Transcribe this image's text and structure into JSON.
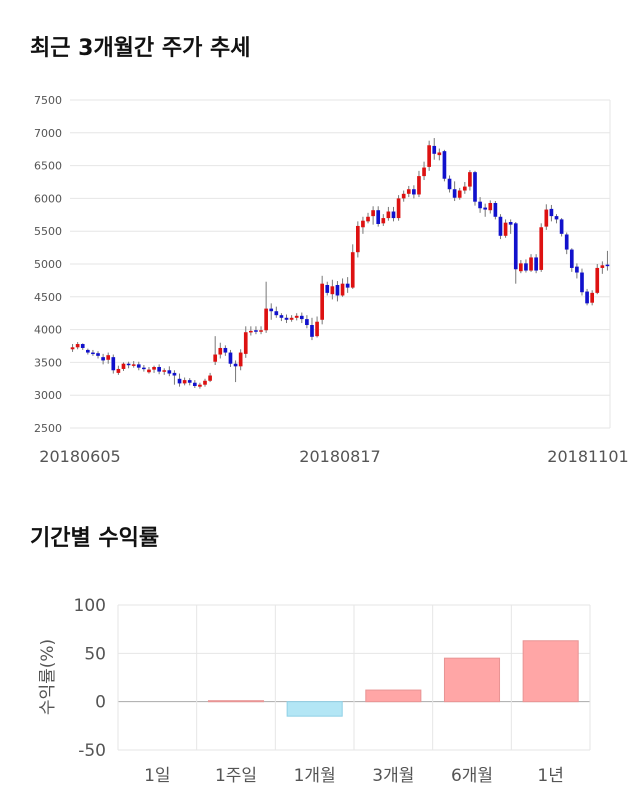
{
  "section1": {
    "title": "최근 3개월간 주가 추세"
  },
  "section2": {
    "title": "기간별 수익률"
  },
  "chart_data": [
    {
      "type": "candlestick",
      "title": "최근 3개월간 주가 추세",
      "ylim": [
        2500,
        7500
      ],
      "y_ticks": [
        "2500",
        "3000",
        "3500",
        "4000",
        "4500",
        "5000",
        "5500",
        "6000",
        "6500",
        "7000",
        "7500"
      ],
      "x_ticks": [
        "20180605",
        "20180817",
        "20181101"
      ],
      "colors": {
        "up": "#dd1111",
        "down": "#1111cc"
      },
      "grid": true,
      "close": [
        3730,
        3780,
        3720,
        3650,
        3640,
        3600,
        3530,
        3610,
        3380,
        3400,
        3480,
        3470,
        3470,
        3420,
        3400,
        3390,
        3430,
        3360,
        3380,
        3330,
        3300,
        3180,
        3230,
        3190,
        3140,
        3160,
        3220,
        3300,
        3620,
        3720,
        3650,
        3480,
        3440,
        3650,
        3960,
        3980,
        3970,
        3990,
        4320,
        4280,
        4220,
        4180,
        4150,
        4180,
        4210,
        4160,
        4070,
        3890,
        4120,
        4700,
        4560,
        4660,
        4520,
        4700,
        4640,
        5180,
        5580,
        5660,
        5720,
        5820,
        5610,
        5700,
        5800,
        5700,
        6000,
        6070,
        6140,
        6060,
        6340,
        6470,
        6810,
        6680,
        6700,
        6300,
        6140,
        6010,
        6120,
        6180,
        6400,
        5950,
        5850,
        5830,
        5930,
        5720,
        5430,
        5630,
        5600,
        4920,
        5010,
        4900,
        5100,
        4900,
        5560,
        5830,
        5730,
        5680,
        5460,
        5220,
        4940,
        4870,
        4570,
        4400,
        4560,
        4940,
        4980,
        4970
      ],
      "open": [
        3700,
        3730,
        3780,
        3690,
        3650,
        3640,
        3580,
        3540,
        3580,
        3340,
        3400,
        3480,
        3470,
        3470,
        3420,
        3350,
        3390,
        3430,
        3360,
        3380,
        3340,
        3250,
        3180,
        3230,
        3190,
        3130,
        3160,
        3220,
        3510,
        3620,
        3720,
        3650,
        3480,
        3440,
        3630,
        3960,
        3990,
        3970,
        3990,
        4320,
        4280,
        4220,
        4180,
        4150,
        4180,
        4210,
        4160,
        4070,
        3900,
        4150,
        4680,
        4540,
        4680,
        4520,
        4700,
        4640,
        5180,
        5560,
        5650,
        5730,
        5820,
        5620,
        5700,
        5800,
        5700,
        6000,
        6070,
        6140,
        6060,
        6340,
        6480,
        6800,
        6660,
        6720,
        6300,
        6140,
        6010,
        6120,
        6180,
        6400,
        5950,
        5860,
        5820,
        5930,
        5720,
        5430,
        5640,
        5620,
        4890,
        5010,
        4900,
        5100,
        4910,
        5570,
        5840,
        5730,
        5680,
        5450,
        5220,
        4960,
        4870,
        4580,
        4410,
        4560,
        4940,
        4990
      ],
      "high": [
        3780,
        3810,
        3790,
        3710,
        3690,
        3670,
        3630,
        3650,
        3620,
        3450,
        3500,
        3510,
        3520,
        3510,
        3460,
        3430,
        3450,
        3470,
        3410,
        3440,
        3380,
        3330,
        3270,
        3260,
        3230,
        3190,
        3250,
        3340,
        3900,
        3800,
        3760,
        3690,
        3530,
        3700,
        4050,
        4050,
        4050,
        4050,
        4730,
        4400,
        4350,
        4250,
        4230,
        4220,
        4250,
        4260,
        4220,
        4180,
        4200,
        4820,
        4730,
        4760,
        4740,
        4780,
        4800,
        5300,
        5650,
        5720,
        5780,
        5880,
        5880,
        5760,
        5870,
        5870,
        6050,
        6120,
        6190,
        6200,
        6420,
        6560,
        6880,
        6920,
        6760,
        6740,
        6350,
        6260,
        6160,
        6250,
        6430,
        6420,
        6020,
        5920,
        5970,
        5960,
        5760,
        5680,
        5680,
        5640,
        5060,
        5070,
        5150,
        5150,
        5620,
        5910,
        5900,
        5760,
        5700,
        5480,
        5240,
        5010,
        4930,
        4620,
        4600,
        5000,
        5040,
        5200
      ],
      "low": [
        3660,
        3700,
        3690,
        3620,
        3600,
        3560,
        3470,
        3480,
        3330,
        3310,
        3370,
        3410,
        3420,
        3380,
        3360,
        3330,
        3340,
        3320,
        3310,
        3290,
        3160,
        3130,
        3150,
        3150,
        3110,
        3100,
        3130,
        3200,
        3460,
        3560,
        3600,
        3430,
        3200,
        3380,
        3570,
        3910,
        3930,
        3930,
        3950,
        4150,
        4180,
        4130,
        4100,
        4120,
        4140,
        4100,
        4020,
        3840,
        3880,
        4080,
        4520,
        4460,
        4430,
        4500,
        4560,
        4620,
        5100,
        5460,
        5620,
        5600,
        5570,
        5580,
        5660,
        5650,
        5660,
        5950,
        6020,
        6000,
        6020,
        6280,
        6420,
        6590,
        6580,
        6260,
        6090,
        5960,
        5980,
        6070,
        6120,
        5890,
        5780,
        5720,
        5770,
        5680,
        5380,
        5400,
        5460,
        4700,
        4860,
        4870,
        4880,
        4860,
        4880,
        5520,
        5650,
        5620,
        5420,
        5150,
        4880,
        4780,
        4520,
        4370,
        4370,
        4540,
        4850,
        4900
      ]
    },
    {
      "type": "bar",
      "title": "기간별 수익률",
      "ylabel": "수익률(%)",
      "ylim": [
        -50,
        100
      ],
      "y_ticks": [
        "-50",
        "0",
        "50",
        "100"
      ],
      "categories": [
        "1일",
        "1주일",
        "1개월",
        "3개월",
        "6개월",
        "1년"
      ],
      "values": [
        0,
        1,
        -15,
        12,
        45,
        63
      ],
      "grid": true,
      "colors": {
        "positive": "#ffa6a6",
        "negative": "#b3e6f5"
      }
    }
  ]
}
